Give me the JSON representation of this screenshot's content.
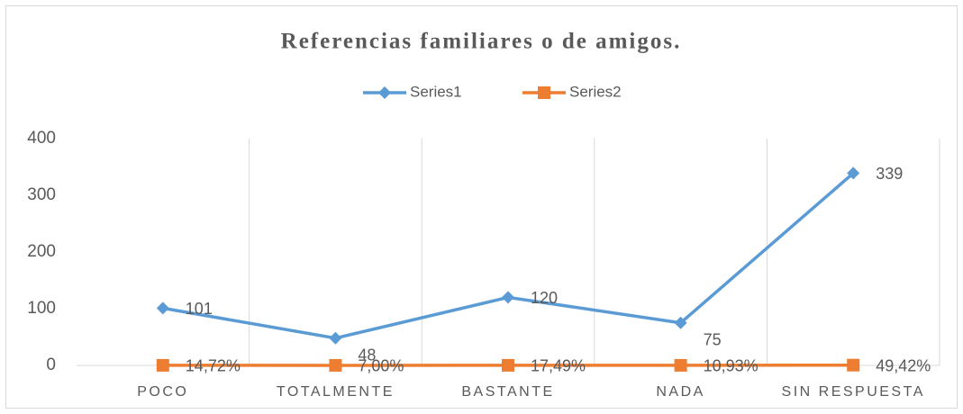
{
  "chart_data": {
    "type": "line",
    "title": "Referencias familiares o de amigos.",
    "categories": [
      "POCO",
      "TOTALMENTE",
      "BASTANTE",
      "NADA",
      "SIN RESPUESTA"
    ],
    "series": [
      {
        "name": "Series1",
        "color": "#5b9bd5",
        "values": [
          101,
          48,
          120,
          75,
          339
        ],
        "marker": "diamond"
      },
      {
        "name": "Series2",
        "color": "#ed7d31",
        "values": [
          0.1472,
          0.07,
          0.1749,
          0.1093,
          0.4942
        ],
        "value_labels": [
          "14,72%",
          "7,00%",
          "17,49%",
          "10,93%",
          "49,42%"
        ],
        "marker": "square"
      }
    ],
    "ylim": [
      0,
      400
    ],
    "yticks": [
      0,
      100,
      200,
      300,
      400
    ],
    "grid": false,
    "legend": "top"
  }
}
